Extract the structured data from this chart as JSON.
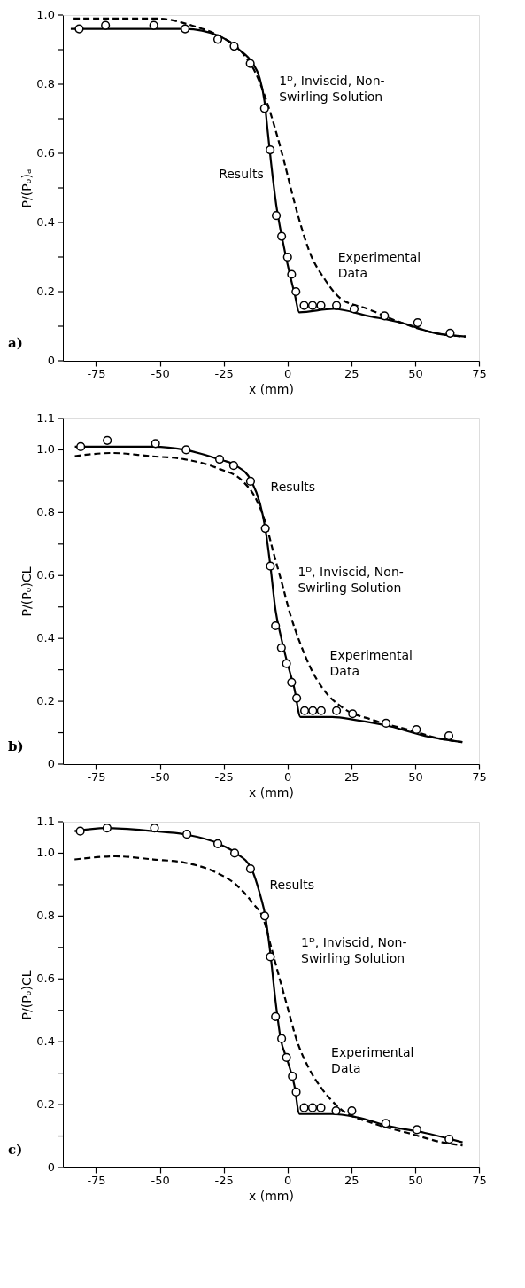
{
  "chart_data": [
    {
      "type": "line",
      "title": "a)",
      "xlabel": "x (mm)",
      "ylabel": "P/(Pₒ)ₐ",
      "xlim": [
        -88,
        75
      ],
      "ylim": [
        0,
        1.0
      ],
      "xticks": [
        -75,
        -50,
        -25,
        0,
        25,
        50,
        75
      ],
      "yticks": [
        0,
        {
          "value": 0.1,
          "label": null
        },
        0.2,
        {
          "value": 0.3,
          "label": null
        },
        0.4,
        {
          "value": 0.5,
          "label": null
        },
        0.6,
        {
          "value": 0.7,
          "label": null
        },
        0.8,
        {
          "value": 0.9,
          "label": null
        },
        {
          "value": 1.0,
          "label": "1.0"
        }
      ],
      "grid": false,
      "series": [
        {
          "type": "line",
          "line_style": "solid",
          "color": "#000000",
          "x": [
            -84.9,
            -74.6,
            -50.7,
            -40.1,
            -26.9,
            -18.9,
            -13.6,
            -11.0,
            -9.0,
            -7.7,
            -6.4,
            -4.4,
            -1.7,
            0.9,
            2.9,
            4.6,
            18.1,
            31.4,
            44.6,
            57.9,
            69.8
          ],
          "values": [
            0.96,
            0.96,
            0.96,
            0.96,
            0.94,
            0.9,
            0.86,
            0.82,
            0.75,
            0.66,
            0.57,
            0.45,
            0.34,
            0.25,
            0.19,
            0.14,
            0.15,
            0.13,
            0.11,
            0.08,
            0.07
          ]
        },
        {
          "type": "line",
          "line_style": "dashed",
          "color": "#000000",
          "x": [
            -83.8,
            -67.9,
            -50.7,
            -37.5,
            -26.9,
            -17.6,
            -11.7,
            -7.7,
            -4.4,
            -1.1,
            1.6,
            4.9,
            8.9,
            14.2,
            20.8,
            31.4,
            44.6,
            57.9,
            69.8
          ],
          "values": [
            0.99,
            0.99,
            0.99,
            0.97,
            0.94,
            0.89,
            0.82,
            0.74,
            0.66,
            0.57,
            0.49,
            0.4,
            0.31,
            0.24,
            0.18,
            0.15,
            0.11,
            0.08,
            0.07
          ]
        },
        {
          "type": "scatter",
          "marker": "circle",
          "color": "#000000",
          "x": [
            -81.6,
            -71.3,
            -52.4,
            -40.1,
            -27.3,
            -20.9,
            -14.6,
            -9.0,
            -6.8,
            -4.4,
            -2.3,
            0.0,
            1.6,
            3.3,
            6.5,
            9.8,
            13.1,
            19.2,
            26.1,
            38.0,
            51.0,
            63.7
          ],
          "values": [
            0.96,
            0.97,
            0.97,
            0.96,
            0.93,
            0.91,
            0.86,
            0.73,
            0.61,
            0.42,
            0.36,
            0.3,
            0.25,
            0.2,
            0.16,
            0.16,
            0.16,
            0.16,
            0.15,
            0.13,
            0.11,
            0.08
          ]
        }
      ],
      "annotations": [
        {
          "text": "Results",
          "x": -6.6,
          "y": 0.55
        },
        {
          "text": "1ᴰ, Inviscid, Non-\nSwirling Solution",
          "x": -4.0,
          "y": 0.66
        },
        {
          "text": "Experimental\nData",
          "x": 17,
          "y": 0.19
        }
      ]
    },
    {
      "type": "line",
      "title": "b)",
      "xlabel": "x (mm)",
      "ylabel": "P/(Pₒ)CL",
      "xlim": [
        -88,
        75
      ],
      "ylim": [
        0,
        1.1
      ],
      "xticks": [
        -75,
        -50,
        -25,
        0,
        25,
        50,
        75
      ],
      "yticks": [
        0,
        {
          "value": 0.1,
          "label": null
        },
        0.2,
        {
          "value": 0.3,
          "label": null
        },
        0.4,
        {
          "value": 0.5,
          "label": null
        },
        0.6,
        {
          "value": 0.7,
          "label": null
        },
        0.8,
        {
          "value": 0.9,
          "label": null
        },
        {
          "value": 1.0,
          "label": "1.0"
        },
        1.1
      ],
      "grid": false,
      "series": [
        {
          "type": "line",
          "line_style": "solid",
          "color": "#000000",
          "x": [
            -83.3,
            -71.2,
            -52.4,
            -40.3,
            -26.9,
            -20.2,
            -14.1,
            -10.8,
            -8.7,
            -6.7,
            -4.7,
            -2.7,
            0.0,
            2.7,
            5.1,
            17.5,
            26.9,
            40.3,
            53.8,
            68.5
          ],
          "values": [
            1.01,
            1.01,
            1.01,
            1.0,
            0.97,
            0.95,
            0.9,
            0.83,
            0.75,
            0.63,
            0.49,
            0.41,
            0.32,
            0.24,
            0.15,
            0.15,
            0.14,
            0.12,
            0.09,
            0.07
          ]
        },
        {
          "type": "line",
          "line_style": "dashed",
          "color": "#000000",
          "x": [
            -83.3,
            -68.5,
            -53.8,
            -40.3,
            -26.9,
            -17.5,
            -12.1,
            -8.7,
            -5.4,
            -2.0,
            1.3,
            4.7,
            9.4,
            14.8,
            21.5,
            33.6,
            47.0,
            60.5,
            68.5
          ],
          "values": [
            0.98,
            0.99,
            0.98,
            0.97,
            0.94,
            0.9,
            0.84,
            0.77,
            0.67,
            0.57,
            0.47,
            0.39,
            0.3,
            0.23,
            0.18,
            0.14,
            0.11,
            0.08,
            0.07
          ]
        },
        {
          "type": "scatter",
          "marker": "circle",
          "color": "#000000",
          "x": [
            -81.0,
            -70.6,
            -51.7,
            -39.7,
            -26.6,
            -21.1,
            -14.5,
            -8.7,
            -6.7,
            -4.7,
            -2.4,
            -0.4,
            1.6,
            3.6,
            6.7,
            9.9,
            13.2,
            19.2,
            25.5,
            38.6,
            50.5,
            63.2
          ],
          "values": [
            1.01,
            1.03,
            1.02,
            1.0,
            0.97,
            0.95,
            0.9,
            0.75,
            0.63,
            0.44,
            0.37,
            0.32,
            0.26,
            0.21,
            0.17,
            0.17,
            0.17,
            0.17,
            0.16,
            0.13,
            0.11,
            0.09
          ]
        }
      ],
      "annotations": [
        {
          "text": "Results",
          "x": -10.8,
          "y": 0.84
        },
        {
          "text": "1ᴰ, Inviscid, Non-\nSwirling Solution",
          "x": -1.5,
          "y": 0.58
        },
        {
          "text": "Experimental\nData",
          "x": 14.5,
          "y": 0.18
        }
      ]
    },
    {
      "type": "line",
      "title": "c)",
      "xlabel": "x (mm)",
      "ylabel": "P/(Pₒ)CL",
      "xlim": [
        -88,
        75
      ],
      "ylim": [
        0,
        1.1
      ],
      "xticks": [
        -75,
        -50,
        -25,
        0,
        25,
        50,
        75
      ],
      "yticks": [
        0,
        {
          "value": 0.1,
          "label": null
        },
        0.2,
        {
          "value": 0.3,
          "label": null
        },
        0.4,
        {
          "value": 0.5,
          "label": null
        },
        0.6,
        {
          "value": 0.7,
          "label": null
        },
        0.8,
        {
          "value": 0.9,
          "label": null
        },
        {
          "value": 1.0,
          "label": "1.0"
        },
        1.1
      ],
      "grid": false,
      "series": [
        {
          "type": "line",
          "line_style": "solid",
          "color": "#000000",
          "x": [
            -83.4,
            -71.3,
            -52.5,
            -40.4,
            -26.9,
            -20.2,
            -14.1,
            -10.8,
            -8.7,
            -6.7,
            -4.7,
            -2.7,
            0.0,
            2.7,
            4.7,
            17.5,
            26.9,
            40.4,
            53.8,
            68.6
          ],
          "values": [
            1.07,
            1.08,
            1.07,
            1.06,
            1.03,
            1.0,
            0.95,
            0.87,
            0.8,
            0.68,
            0.53,
            0.41,
            0.34,
            0.26,
            0.17,
            0.17,
            0.16,
            0.13,
            0.11,
            0.08
          ]
        },
        {
          "type": "line",
          "line_style": "dashed",
          "color": "#000000",
          "x": [
            -83.4,
            -67.3,
            -52.5,
            -40.4,
            -28.3,
            -20.2,
            -13.5,
            -9.4,
            -6.7,
            -3.4,
            0.0,
            3.4,
            8.1,
            13.5,
            20.2,
            33.6,
            47.1,
            60.6,
            68.6
          ],
          "values": [
            0.98,
            0.99,
            0.98,
            0.97,
            0.94,
            0.9,
            0.84,
            0.79,
            0.71,
            0.61,
            0.51,
            0.41,
            0.32,
            0.25,
            0.19,
            0.14,
            0.11,
            0.08,
            0.07
          ]
        },
        {
          "type": "scatter",
          "marker": "circle",
          "color": "#000000",
          "x": [
            -81.2,
            -70.7,
            -52.1,
            -39.4,
            -27.3,
            -20.7,
            -14.5,
            -8.9,
            -6.7,
            -4.7,
            -2.3,
            -0.4,
            1.9,
            3.4,
            6.5,
            9.8,
            13.1,
            19.0,
            25.2,
            38.5,
            50.7,
            63.3
          ],
          "values": [
            1.07,
            1.08,
            1.08,
            1.06,
            1.03,
            1.0,
            0.95,
            0.8,
            0.67,
            0.48,
            0.41,
            0.35,
            0.29,
            0.24,
            0.19,
            0.19,
            0.19,
            0.18,
            0.18,
            0.14,
            0.12,
            0.09
          ]
        }
      ],
      "annotations": [
        {
          "text": "Results",
          "x": -10.5,
          "y": 0.87
        },
        {
          "text": "1ᴰ, Inviscid, Non-\nSwirling Solution",
          "x": -3.0,
          "y": 0.6
        },
        {
          "text": "Experimental\nData",
          "x": 14,
          "y": 0.2
        }
      ]
    }
  ]
}
